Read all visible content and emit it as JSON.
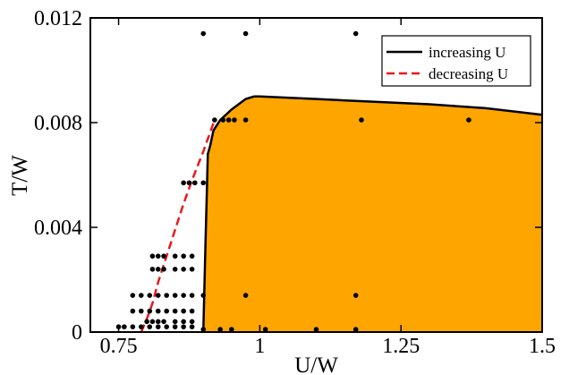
{
  "chart_data": {
    "type": "line",
    "title": "",
    "xlabel": "U/W",
    "ylabel": "T/W",
    "xlim": [
      0.7,
      1.5
    ],
    "ylim": [
      0,
      0.012
    ],
    "x_ticks": [
      0.75,
      1,
      1.25,
      1.5
    ],
    "x_tick_labels": [
      "0.75",
      "1",
      "1.25",
      "1.5"
    ],
    "y_ticks": [
      0,
      0.004,
      0.008,
      0.012
    ],
    "y_tick_labels": [
      "0",
      "0.004",
      "0.008",
      "0.012"
    ],
    "grid": false,
    "legend_position": "top-right",
    "colors": {
      "increasing": "#000000",
      "decreasing": "#e8191c",
      "fill": "#ffa500",
      "points": "#000000"
    },
    "series": [
      {
        "name": "increasing U",
        "style": "solid",
        "x": [
          0.9,
          0.904,
          0.908,
          0.912,
          0.918,
          0.93,
          0.95,
          0.975,
          0.99,
          1.0,
          1.1,
          1.2,
          1.3,
          1.4,
          1.5
        ],
        "y": [
          0,
          0.0035,
          0.0068,
          0.0071,
          0.0077,
          0.0081,
          0.0085,
          0.0089,
          0.009,
          0.009,
          0.0089,
          0.0088,
          0.0087,
          0.00855,
          0.0083
        ]
      },
      {
        "name": "decreasing U",
        "style": "dashed",
        "x": [
          0.79,
          0.8,
          0.81,
          0.82,
          0.835,
          0.85,
          0.865,
          0.88,
          0.9,
          0.92
        ],
        "y": [
          0,
          0.0005,
          0.0011,
          0.0019,
          0.0029,
          0.0039,
          0.0049,
          0.0058,
          0.0069,
          0.0081
        ]
      }
    ],
    "shaded_region": {
      "label": "",
      "x": [
        0.9,
        0.904,
        0.908,
        0.912,
        0.918,
        0.93,
        0.95,
        0.975,
        0.99,
        1.0,
        1.1,
        1.2,
        1.3,
        1.4,
        1.5
      ],
      "y": [
        0,
        0.0035,
        0.0068,
        0.0071,
        0.0077,
        0.0081,
        0.0085,
        0.0089,
        0.009,
        0.009,
        0.0089,
        0.0088,
        0.0087,
        0.00855,
        0.0083
      ]
    },
    "points": [
      [
        0.9,
        0.0114
      ],
      [
        0.975,
        0.0114
      ],
      [
        1.17,
        0.0114
      ],
      [
        0.92,
        0.0081
      ],
      [
        0.935,
        0.0081
      ],
      [
        0.945,
        0.0081
      ],
      [
        0.955,
        0.0081
      ],
      [
        0.975,
        0.0081
      ],
      [
        1.18,
        0.0081
      ],
      [
        1.37,
        0.0081
      ],
      [
        0.865,
        0.0057
      ],
      [
        0.875,
        0.0057
      ],
      [
        0.885,
        0.0057
      ],
      [
        0.9,
        0.0057
      ],
      [
        0.81,
        0.0029
      ],
      [
        0.82,
        0.0029
      ],
      [
        0.83,
        0.0029
      ],
      [
        0.85,
        0.0029
      ],
      [
        0.865,
        0.0029
      ],
      [
        0.88,
        0.0029
      ],
      [
        0.81,
        0.0024
      ],
      [
        0.82,
        0.0024
      ],
      [
        0.83,
        0.0024
      ],
      [
        0.85,
        0.0024
      ],
      [
        0.865,
        0.0024
      ],
      [
        0.88,
        0.0024
      ],
      [
        0.775,
        0.0014
      ],
      [
        0.79,
        0.0014
      ],
      [
        0.805,
        0.0014
      ],
      [
        0.82,
        0.0014
      ],
      [
        0.835,
        0.0014
      ],
      [
        0.85,
        0.0014
      ],
      [
        0.865,
        0.0014
      ],
      [
        0.88,
        0.0014
      ],
      [
        0.9,
        0.0014
      ],
      [
        0.975,
        0.0014
      ],
      [
        1.17,
        0.0014
      ],
      [
        0.775,
        0.0008
      ],
      [
        0.79,
        0.0008
      ],
      [
        0.805,
        0.0008
      ],
      [
        0.82,
        0.0008
      ],
      [
        0.835,
        0.0008
      ],
      [
        0.85,
        0.0008
      ],
      [
        0.865,
        0.0008
      ],
      [
        0.88,
        0.0008
      ],
      [
        0.8,
        0.0004
      ],
      [
        0.81,
        0.0004
      ],
      [
        0.82,
        0.0004
      ],
      [
        0.83,
        0.0004
      ],
      [
        0.85,
        0.0004
      ],
      [
        0.865,
        0.0004
      ],
      [
        0.88,
        0.0004
      ],
      [
        0.75,
        0.0002
      ],
      [
        0.76,
        0.0002
      ],
      [
        0.775,
        0.0002
      ],
      [
        0.79,
        0.0002
      ],
      [
        0.805,
        0.0002
      ],
      [
        0.82,
        0.0002
      ],
      [
        0.835,
        0.0002
      ],
      [
        0.85,
        0.0002
      ],
      [
        0.865,
        0.0002
      ],
      [
        0.88,
        0.0002
      ],
      [
        0.9,
        0.0001
      ],
      [
        0.93,
        0.0001
      ],
      [
        0.95,
        0.0001
      ],
      [
        1.01,
        0.0001
      ],
      [
        1.1,
        0.0001
      ],
      [
        1.17,
        0.0001
      ]
    ]
  }
}
